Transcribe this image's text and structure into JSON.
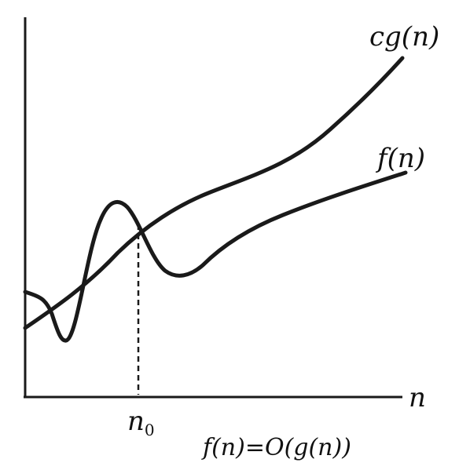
{
  "labels": {
    "upper_curve": "cg(n)",
    "lower_curve": "f(n)",
    "x_axis": "n",
    "threshold_base": "n",
    "threshold_sub": "0",
    "caption": "f(n)=O(g(n))"
  },
  "colors": {
    "ink": "#1a1a1a",
    "background": "#ffffff"
  }
}
